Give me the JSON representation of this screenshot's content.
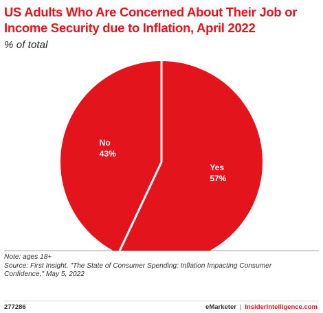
{
  "chart_data": {
    "type": "pie",
    "title": "US Adults Who Are Concerned About Their Job or Income Security due to Inflation, April 2022",
    "subtitle": "% of total",
    "categories": [
      "Yes",
      "No"
    ],
    "values": [
      57,
      43
    ],
    "data_labels": [
      "57%",
      "43%"
    ],
    "colors": [
      "#e3141b",
      "#e3141b"
    ],
    "legend": false
  },
  "notes": {
    "note": "Note: ages 18+",
    "source": "Source: First Insight, \"The State of Consumer Spending: Inflation Impacting Consumer Confidence,\" May 5, 2022"
  },
  "footer": {
    "chart_id": "277286",
    "brand": "eMarketer",
    "separator": "|",
    "brand_site": "InsiderIntelligence.com"
  },
  "colors": {
    "accent": "#e3141b",
    "separator_line": "#ffffff"
  }
}
